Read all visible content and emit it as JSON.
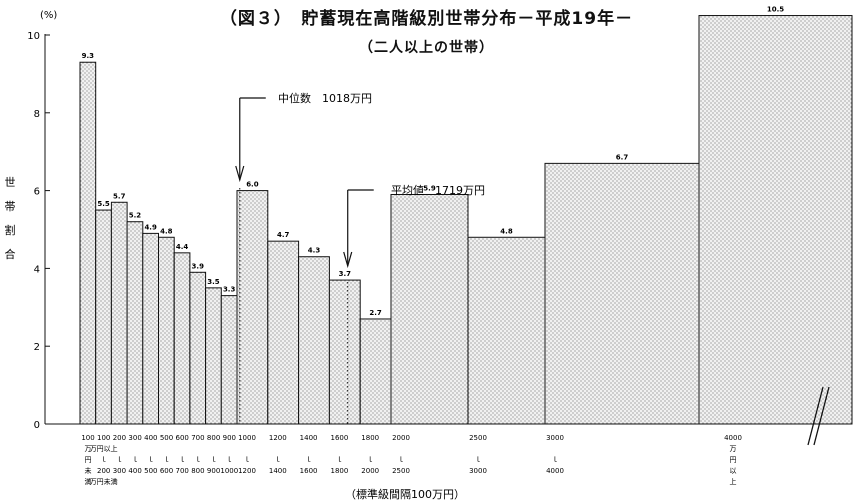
{
  "figure": {
    "title": "（図３）　貯蓄現在高階級別世帯分布－平成19年－",
    "subtitle": "（二人以上の世帯）"
  },
  "chart_data": {
    "type": "bar",
    "title": "貯蓄現在高階級別世帯分布－平成19年－",
    "subtitle": "（二人以上の世帯）",
    "xlabel": "（標準級間隔100万円）",
    "ylabel": "世帯割合",
    "yunit": "(%)",
    "ylim": [
      0,
      10
    ],
    "yticks": [
      "0",
      "2",
      "4",
      "6",
      "8",
      "10"
    ],
    "grid": false,
    "legend": "none",
    "bars": [
      {
        "range": "100万円未満",
        "value": 9.3,
        "label": "9.3",
        "lo": 0,
        "hi": 100
      },
      {
        "range": "100～200",
        "value": 5.5,
        "label": "5.5",
        "lo": 100,
        "hi": 200
      },
      {
        "range": "200～300",
        "value": 5.7,
        "label": "5.7",
        "lo": 200,
        "hi": 300
      },
      {
        "range": "300～400",
        "value": 5.2,
        "label": "5.2",
        "lo": 300,
        "hi": 400
      },
      {
        "range": "400～500",
        "value": 4.9,
        "label": "4.9",
        "lo": 400,
        "hi": 500
      },
      {
        "range": "500～600",
        "value": 4.8,
        "label": "4.8",
        "lo": 500,
        "hi": 600
      },
      {
        "range": "600～700",
        "value": 4.4,
        "label": "4.4",
        "lo": 600,
        "hi": 700
      },
      {
        "range": "700～800",
        "value": 3.9,
        "label": "3.9",
        "lo": 700,
        "hi": 800
      },
      {
        "range": "800～900",
        "value": 3.5,
        "label": "3.5",
        "lo": 800,
        "hi": 900
      },
      {
        "range": "900～1000",
        "value": 3.3,
        "label": "3.3",
        "lo": 900,
        "hi": 1000
      },
      {
        "range": "1000～1200",
        "value": 6.0,
        "label": "6.0",
        "lo": 1000,
        "hi": 1200
      },
      {
        "range": "1200～1400",
        "value": 4.7,
        "label": "4.7",
        "lo": 1200,
        "hi": 1400
      },
      {
        "range": "1400～1600",
        "value": 4.3,
        "label": "4.3",
        "lo": 1400,
        "hi": 1600
      },
      {
        "range": "1600～1800",
        "value": 3.7,
        "label": "3.7",
        "lo": 1600,
        "hi": 1800
      },
      {
        "range": "1800～2000",
        "value": 2.7,
        "label": "2.7",
        "lo": 1800,
        "hi": 2000
      },
      {
        "range": "2000～2500",
        "value": 5.9,
        "label": "5.9",
        "lo": 2000,
        "hi": 2500
      },
      {
        "range": "2500～3000",
        "value": 4.8,
        "label": "4.8",
        "lo": 2500,
        "hi": 3000
      },
      {
        "range": "3000～4000",
        "value": 6.7,
        "label": "6.7",
        "lo": 3000,
        "hi": 4000
      },
      {
        "range": "4000万円以上",
        "value": 10.5,
        "label": "10.5",
        "lo": 4000,
        "hi": 5000
      }
    ],
    "x_labels": [
      {
        "at": 0,
        "lines": [
          "100",
          "万",
          "円",
          "未",
          "満"
        ]
      },
      {
        "at": 100,
        "lines": [
          "100",
          "万円以上",
          "ｌ",
          "200",
          "万円未満"
        ]
      },
      {
        "at": 200,
        "lines": [
          "200",
          "",
          "ｌ",
          "300"
        ]
      },
      {
        "at": 300,
        "lines": [
          "300",
          "",
          "ｌ",
          "400"
        ]
      },
      {
        "at": 400,
        "lines": [
          "400",
          "",
          "ｌ",
          "500"
        ]
      },
      {
        "at": 500,
        "lines": [
          "500",
          "",
          "ｌ",
          "600"
        ]
      },
      {
        "at": 600,
        "lines": [
          "600",
          "",
          "ｌ",
          "700"
        ]
      },
      {
        "at": 700,
        "lines": [
          "700",
          "",
          "ｌ",
          "800"
        ]
      },
      {
        "at": 800,
        "lines": [
          "800",
          "",
          "ｌ",
          "900"
        ]
      },
      {
        "at": 900,
        "lines": [
          "900",
          "",
          "ｌ",
          "1000"
        ]
      },
      {
        "at": 1000,
        "lines": [
          "1000",
          "",
          "ｌ",
          "1200"
        ]
      },
      {
        "at": 1200,
        "lines": [
          "1200",
          "",
          "ｌ",
          "1400"
        ]
      },
      {
        "at": 1400,
        "lines": [
          "1400",
          "",
          "ｌ",
          "1600"
        ]
      },
      {
        "at": 1600,
        "lines": [
          "1600",
          "",
          "ｌ",
          "1800"
        ]
      },
      {
        "at": 1800,
        "lines": [
          "1800",
          "",
          "ｌ",
          "2000"
        ]
      },
      {
        "at": 2000,
        "lines": [
          "2000",
          "",
          "ｌ",
          "2500"
        ]
      },
      {
        "at": 2500,
        "lines": [
          "2500",
          "",
          "ｌ",
          "3000"
        ]
      },
      {
        "at": 3000,
        "lines": [
          "3000",
          "",
          "ｌ",
          "4000"
        ]
      },
      {
        "at": 4000,
        "lines": [
          "4000",
          "万",
          "円",
          "以",
          "上"
        ]
      }
    ],
    "annotations": [
      {
        "name": "median",
        "label": "中位数",
        "value_text": "1018万円",
        "x": 1018
      },
      {
        "name": "mean",
        "label": "平均値",
        "value_text": "1719万円",
        "x": 1719
      }
    ],
    "colors": {
      "ink": "#111111",
      "bar_fill": "#f1f1f1",
      "dot": "#777777"
    }
  }
}
